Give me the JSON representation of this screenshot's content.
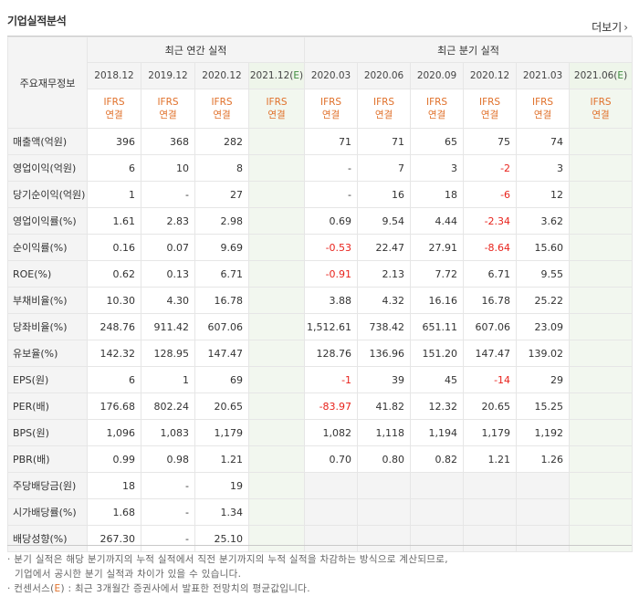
{
  "header": {
    "title": "기업실적분석",
    "more_label": "더보기"
  },
  "table": {
    "row_header_label": "주요재무정보",
    "groups": {
      "annual": "최근 연간 실적",
      "quarterly": "최근 분기 실적"
    },
    "periods": [
      "2018.12",
      "2019.12",
      "2020.12",
      "2021.12(E)",
      "2020.03",
      "2020.06",
      "2020.09",
      "2020.12",
      "2021.03",
      "2021.06(E)"
    ],
    "ifrs": {
      "top": "IFRS",
      "bottom": "연결"
    },
    "rows": [
      {
        "label": "매출액(억원)",
        "values": [
          "396",
          "368",
          "282",
          "",
          "71",
          "71",
          "65",
          "75",
          "74",
          ""
        ]
      },
      {
        "label": "영업이익(억원)",
        "values": [
          "6",
          "10",
          "8",
          "",
          "-",
          "7",
          "3",
          "-2",
          "3",
          ""
        ]
      },
      {
        "label": "당기순이익(억원)",
        "values": [
          "1",
          "-",
          "27",
          "",
          "-",
          "16",
          "18",
          "-6",
          "12",
          ""
        ]
      },
      {
        "label": "영업이익률(%)",
        "values": [
          "1.61",
          "2.83",
          "2.98",
          "",
          "0.69",
          "9.54",
          "4.44",
          "-2.34",
          "3.62",
          ""
        ]
      },
      {
        "label": "순이익률(%)",
        "values": [
          "0.16",
          "0.07",
          "9.69",
          "",
          "-0.53",
          "22.47",
          "27.91",
          "-8.64",
          "15.60",
          ""
        ]
      },
      {
        "label": "ROE(%)",
        "values": [
          "0.62",
          "0.13",
          "6.71",
          "",
          "-0.91",
          "2.13",
          "7.72",
          "6.71",
          "9.55",
          ""
        ]
      },
      {
        "label": "부채비율(%)",
        "values": [
          "10.30",
          "4.30",
          "16.78",
          "",
          "3.88",
          "4.32",
          "16.16",
          "16.78",
          "25.22",
          ""
        ]
      },
      {
        "label": "당좌비율(%)",
        "values": [
          "248.76",
          "911.42",
          "607.06",
          "",
          "1,512.61",
          "738.42",
          "651.11",
          "607.06",
          "23.09",
          ""
        ]
      },
      {
        "label": "유보율(%)",
        "values": [
          "142.32",
          "128.95",
          "147.47",
          "",
          "128.76",
          "136.96",
          "151.20",
          "147.47",
          "139.02",
          ""
        ]
      },
      {
        "label": "EPS(원)",
        "values": [
          "6",
          "1",
          "69",
          "",
          "-1",
          "39",
          "45",
          "-14",
          "29",
          ""
        ]
      },
      {
        "label": "PER(배)",
        "values": [
          "176.68",
          "802.24",
          "20.65",
          "",
          "-83.97",
          "41.82",
          "12.32",
          "20.65",
          "15.25",
          ""
        ]
      },
      {
        "label": "BPS(원)",
        "values": [
          "1,096",
          "1,083",
          "1,179",
          "",
          "1,082",
          "1,118",
          "1,194",
          "1,179",
          "1,192",
          ""
        ]
      },
      {
        "label": "PBR(배)",
        "values": [
          "0.99",
          "0.98",
          "1.21",
          "",
          "0.70",
          "0.80",
          "0.82",
          "1.21",
          "1.26",
          ""
        ]
      },
      {
        "label": "주당배당금(원)",
        "values": [
          "18",
          "-",
          "19",
          "",
          "",
          "",
          "",
          "",
          "",
          ""
        ]
      },
      {
        "label": "시가배당률(%)",
        "values": [
          "1.68",
          "-",
          "1.34",
          "",
          "",
          "",
          "",
          "",
          "",
          ""
        ]
      },
      {
        "label": "배당성향(%)",
        "values": [
          "267.30",
          "-",
          "25.10",
          "",
          "",
          "",
          "",
          "",
          "",
          ""
        ]
      }
    ]
  },
  "notes": {
    "line1": "· 분기 실적은 해당 분기까지의 누적 실적에서 직전 분기까지의 누적 실적을 차감하는 방식으로 계산되므로,",
    "line2": "기업에서 공시한 분기 실적과 차이가 있을 수 있습니다.",
    "line3_prefix": "· 컨센서스(",
    "line3_mark": "E",
    "line3_suffix": ") : 최근 3개월간 증권사에서 발표한 전망치의 평균값입니다."
  },
  "colors": {
    "ifrs_orange": "#e0702a",
    "negative_red": "#e8231c",
    "estimate_green_bg": "#f2f7ef",
    "estimate_green_text": "#3f8c3f"
  }
}
